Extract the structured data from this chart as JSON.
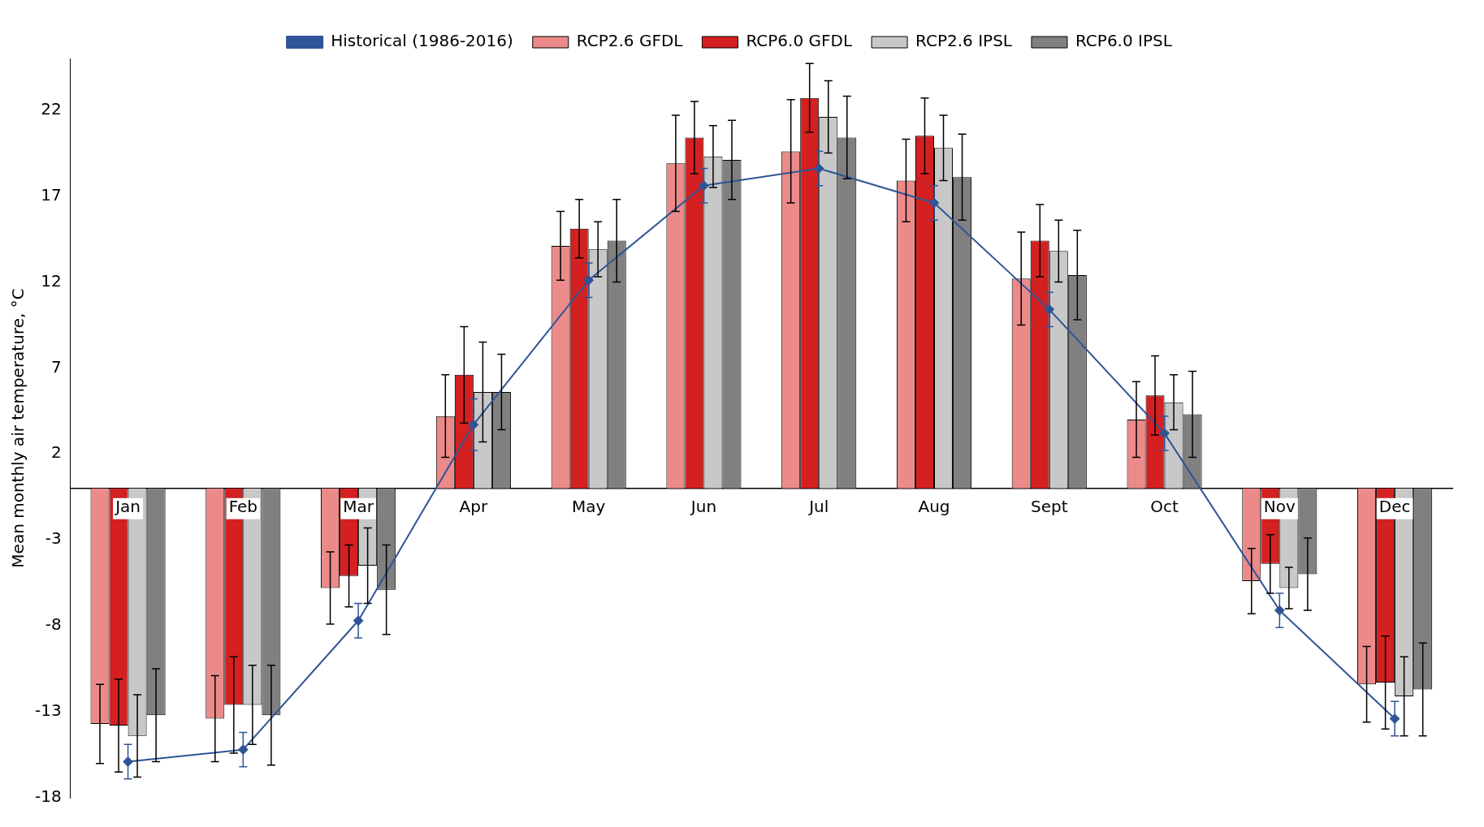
{
  "chart_data": {
    "type": "bar",
    "ylabel": "Mean monthly air temperature, °C",
    "categories": [
      "Jan",
      "Feb",
      "Mar",
      "Apr",
      "May",
      "Jun",
      "Jul",
      "Aug",
      "Sept",
      "Oct",
      "Nov",
      "Dec"
    ],
    "ylim": [
      -18,
      25
    ],
    "yticks": [
      -18,
      -13,
      -8,
      -3,
      2,
      7,
      12,
      17,
      22
    ],
    "grid": false,
    "legend": "top",
    "series": [
      {
        "name": "RCP2.6 GFDL",
        "color": "#ec8a8a",
        "values": [
          -13.7,
          -13.4,
          -5.8,
          4.2,
          14.1,
          18.9,
          19.6,
          17.9,
          12.2,
          4.0,
          -5.4,
          -11.4
        ],
        "errors": [
          2.3,
          2.5,
          2.1,
          2.4,
          2.0,
          2.8,
          3.0,
          2.4,
          2.7,
          2.2,
          1.9,
          2.2
        ]
      },
      {
        "name": "RCP6.0 GFDL",
        "color": "#d42020",
        "values": [
          -13.8,
          -12.6,
          -5.1,
          6.6,
          15.1,
          20.4,
          22.7,
          20.5,
          14.4,
          5.4,
          -4.4,
          -11.3
        ],
        "errors": [
          2.7,
          2.8,
          1.8,
          2.8,
          1.7,
          2.1,
          2.0,
          2.2,
          2.1,
          2.3,
          1.7,
          2.7
        ]
      },
      {
        "name": "RCP2.6 IPSL",
        "color": "#c8c8c8",
        "values": [
          -14.4,
          -12.6,
          -4.5,
          5.6,
          13.9,
          19.3,
          21.6,
          19.8,
          13.8,
          5.0,
          -5.8,
          -12.1
        ],
        "errors": [
          2.4,
          2.3,
          2.2,
          2.9,
          1.6,
          1.8,
          2.1,
          1.9,
          1.8,
          1.6,
          1.2,
          2.3
        ]
      },
      {
        "name": "RCP6.0 IPSL",
        "color": "#808080",
        "values": [
          -13.2,
          -13.2,
          -5.9,
          5.6,
          14.4,
          19.1,
          20.4,
          18.1,
          12.4,
          4.3,
          -5.0,
          -11.7
        ],
        "errors": [
          2.7,
          2.9,
          2.6,
          2.2,
          2.4,
          2.3,
          2.4,
          2.5,
          2.6,
          2.5,
          2.1,
          2.7
        ]
      },
      {
        "name": "Historical (1986-2016)",
        "type": "line",
        "color": "#2f5597",
        "marker": "diamond",
        "values": [
          -15.9,
          -15.2,
          -7.7,
          3.7,
          12.1,
          17.6,
          18.6,
          16.6,
          10.4,
          3.2,
          -7.1,
          -13.4
        ],
        "errors": [
          1.0,
          1.0,
          1.0,
          1.5,
          1.0,
          1.0,
          1.0,
          1.0,
          1.0,
          1.0,
          1.0,
          1.0
        ]
      }
    ]
  }
}
